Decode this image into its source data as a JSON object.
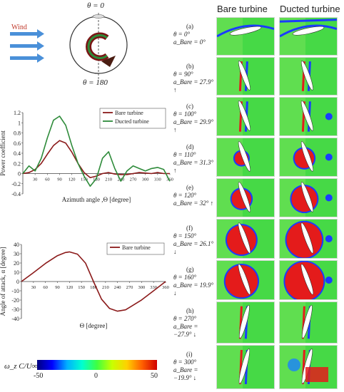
{
  "schematic": {
    "theta_top": "θ = 0",
    "theta_bottom": "θ = 180",
    "wind_label": "Wind"
  },
  "columns": {
    "bare": "Bare turbine",
    "ducted": "Ducted turbine"
  },
  "power_chart": {
    "ylabel": "Power coefficient",
    "xlabel": "Azimuth angle ,Θ [degree]",
    "legend": [
      "Bare turbine",
      "Ducted turbine"
    ],
    "yticks": [
      "1.2",
      "1",
      "0.8",
      "0.6",
      "0.4",
      "0.2",
      "0",
      "-0.2",
      "-0.4"
    ],
    "xticks": [
      "30",
      "60",
      "90",
      "120",
      "150",
      "180",
      "210",
      "240",
      "270",
      "300",
      "330",
      "360"
    ]
  },
  "aoa_chart": {
    "ylabel": "Angle of attack, α [degree]",
    "xlabel": "Θ [degree]",
    "legend": [
      "Bare turbine"
    ],
    "yticks": [
      "40",
      "30",
      "20",
      "10",
      "0",
      "-10",
      "-20",
      "-30",
      "-40"
    ],
    "xticks": [
      "30",
      "60",
      "90",
      "120",
      "150",
      "180",
      "210",
      "240",
      "270",
      "300",
      "330",
      "360"
    ]
  },
  "colorbar": {
    "label": "ω_z C/U∞",
    "ticks": [
      "-50",
      "0",
      "50"
    ]
  },
  "panels": [
    {
      "id": "(a)",
      "theta": "θ = 0°",
      "alpha": "a_Bare = 0°"
    },
    {
      "id": "(b)",
      "theta": "θ = 90°",
      "alpha": "a_Bare = 27.9° ↑"
    },
    {
      "id": "(c)",
      "theta": "θ = 100°",
      "alpha": "a_Bare = 29.9° ↑"
    },
    {
      "id": "(d)",
      "theta": "θ = 110°",
      "alpha": "a_Bare = 31.3° ↑"
    },
    {
      "id": "(e)",
      "theta": "θ = 120°",
      "alpha": "a_Bare = 32° ↑"
    },
    {
      "id": "(f)",
      "theta": "θ = 150°",
      "alpha": "a_Bare = 26.1° ↓"
    },
    {
      "id": "(g)",
      "theta": "θ = 160°",
      "alpha": "a_Bare = 19.9° ↓"
    },
    {
      "id": "(h)",
      "theta": "θ = 270°",
      "alpha": "a_Bare = −27.9° ↓"
    },
    {
      "id": "(i)",
      "theta": "θ = 300°",
      "alpha": "a_Bare = −19.9° ↓"
    }
  ],
  "chart_data": [
    {
      "type": "line",
      "ylabel": "Power coefficient",
      "xlabel": "Azimuth angle ,Θ [degree]",
      "xlim": [
        0,
        360
      ],
      "ylim": [
        -0.4,
        1.2
      ],
      "series": [
        {
          "name": "Bare turbine",
          "color": "#8b1a1a",
          "x": [
            0,
            15,
            30,
            45,
            60,
            75,
            90,
            105,
            120,
            135,
            150,
            165,
            180,
            195,
            210,
            225,
            240,
            255,
            270,
            285,
            300,
            315,
            330,
            345,
            360
          ],
          "y": [
            0.0,
            0.02,
            0.08,
            0.2,
            0.38,
            0.55,
            0.65,
            0.6,
            0.42,
            0.2,
            0.02,
            -0.08,
            -0.05,
            0.0,
            0.02,
            -0.01,
            -0.02,
            -0.02,
            0.0,
            0.02,
            0.01,
            0.0,
            0.02,
            0.0,
            0.0
          ]
        },
        {
          "name": "Ducted turbine",
          "color": "#2e8b3a",
          "x": [
            0,
            15,
            30,
            45,
            60,
            75,
            90,
            105,
            120,
            135,
            150,
            165,
            180,
            195,
            210,
            225,
            240,
            255,
            270,
            285,
            300,
            315,
            330,
            345,
            360
          ],
          "y": [
            0.0,
            0.15,
            0.05,
            0.3,
            0.7,
            1.05,
            1.13,
            0.95,
            0.55,
            0.2,
            -0.05,
            -0.25,
            -0.1,
            0.3,
            0.43,
            0.1,
            -0.15,
            0.05,
            0.15,
            0.1,
            0.05,
            0.1,
            0.12,
            0.08,
            -0.15
          ]
        }
      ]
    },
    {
      "type": "line",
      "ylabel": "Angle of attack, α [degree]",
      "xlabel": "Θ [degree]",
      "xlim": [
        0,
        360
      ],
      "ylim": [
        -40,
        40
      ],
      "series": [
        {
          "name": "Bare turbine",
          "color": "#8b1a1a",
          "x": [
            0,
            30,
            60,
            90,
            110,
            120,
            140,
            160,
            180,
            200,
            220,
            240,
            260,
            270,
            300,
            330,
            360
          ],
          "y": [
            0,
            9.5,
            19.5,
            27.9,
            31.3,
            32,
            29.5,
            19.9,
            0,
            -19,
            -29,
            -32,
            -30.5,
            -27.9,
            -19.9,
            -10,
            0
          ]
        }
      ]
    }
  ]
}
